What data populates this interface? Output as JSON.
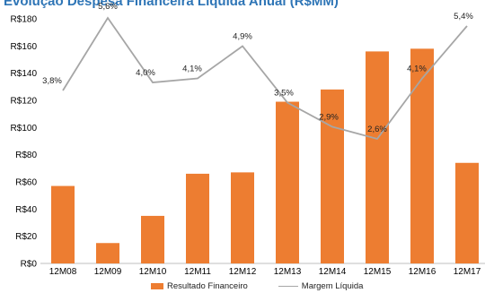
{
  "chart_data": {
    "type": "bar",
    "title": "Evolução Despesa Financeira Líquida Anual (R$MM)",
    "categories": [
      "12M08",
      "12M09",
      "12M10",
      "12M11",
      "12M12",
      "12M13",
      "12M14",
      "12M15",
      "12M16",
      "12M17"
    ],
    "yticks": [
      "R$0",
      "R$20",
      "R$40",
      "R$60",
      "R$80",
      "R$100",
      "R$120",
      "R$140",
      "R$160",
      "R$180"
    ],
    "ylim": [
      0,
      180
    ],
    "series": [
      {
        "name": "Resultado Financeiro",
        "type": "bar",
        "color": "#ed7d31",
        "values": [
          57,
          15,
          35,
          66,
          67,
          119,
          128,
          156,
          158,
          74
        ]
      },
      {
        "name": "Margem Líquida",
        "type": "line",
        "color": "#a6a6a6",
        "values": [
          3.8,
          5.6,
          4.0,
          4.1,
          4.9,
          3.5,
          2.9,
          2.6,
          4.1,
          5.4
        ],
        "labels": [
          "3,8%",
          "5,6%",
          "4,0%",
          "4,1%",
          "4,9%",
          "3,5%",
          "2,9%",
          "2,6%",
          "4,1%",
          "5,4%"
        ]
      }
    ],
    "legend_position": "bottom"
  }
}
